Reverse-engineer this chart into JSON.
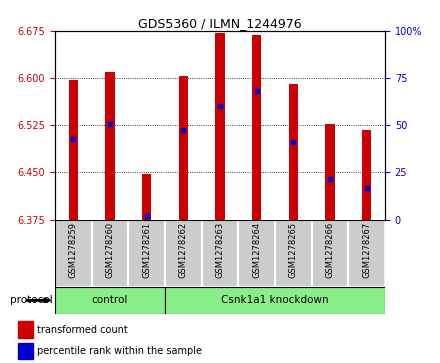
{
  "title": "GDS5360 / ILMN_1244976",
  "samples": [
    "GSM1278259",
    "GSM1278260",
    "GSM1278261",
    "GSM1278262",
    "GSM1278263",
    "GSM1278264",
    "GSM1278265",
    "GSM1278266",
    "GSM1278267"
  ],
  "bar_tops": [
    6.597,
    6.61,
    6.447,
    6.604,
    6.672,
    6.669,
    6.591,
    6.527,
    6.517
  ],
  "bar_base": 6.375,
  "percentile_values": [
    6.503,
    6.527,
    6.38,
    6.518,
    6.556,
    6.58,
    6.498,
    6.44,
    6.425
  ],
  "ylim": [
    6.375,
    6.675
  ],
  "y_ticks": [
    6.375,
    6.45,
    6.525,
    6.6,
    6.675
  ],
  "right_ticks": [
    0,
    25,
    50,
    75,
    100
  ],
  "bar_color": "#cc0000",
  "dot_color": "#0000cc",
  "control_count": 3,
  "knockdown_count": 6,
  "control_label": "control",
  "knockdown_label": "Csnk1a1 knockdown",
  "protocol_label": "protocol",
  "group_color": "#88ee88",
  "tick_label_color_left": "#cc0000",
  "tick_label_color_right": "#0000cc",
  "xlabel_bg": "#cccccc",
  "legend_red_label": "transformed count",
  "legend_blue_label": "percentile rank within the sample",
  "bar_width": 0.25
}
